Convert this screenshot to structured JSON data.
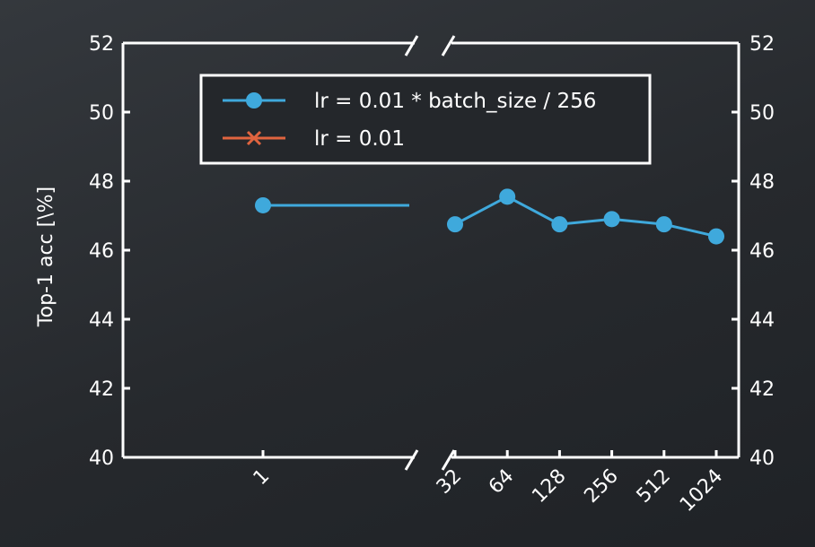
{
  "chart_data": {
    "type": "line",
    "ylabel": "Top-1 acc [\\%]",
    "ylim": [
      40,
      52
    ],
    "yticks": [
      40,
      42,
      44,
      46,
      48,
      50,
      52
    ],
    "ytick_labels": [
      "40",
      "42",
      "44",
      "46",
      "48",
      "50",
      "52"
    ],
    "x_axis": "broken",
    "xtick_labels": [
      "1",
      "32",
      "64",
      "128",
      "256",
      "512",
      "1024"
    ],
    "legend_position": "top",
    "grid": false,
    "series": [
      {
        "name": "lr = 0.01 * batch_size / 256",
        "color": "#3fa9dc",
        "marker": "circle",
        "x": [
          1,
          32,
          64,
          128,
          256,
          512,
          1024
        ],
        "y": [
          47.3,
          46.75,
          47.55,
          46.75,
          46.9,
          46.75,
          46.4
        ],
        "segment_1_extends_to_axis_break": true
      },
      {
        "name": "lr = 0.01",
        "color": "#e0643f",
        "marker": "x",
        "x": [],
        "y": []
      }
    ]
  }
}
